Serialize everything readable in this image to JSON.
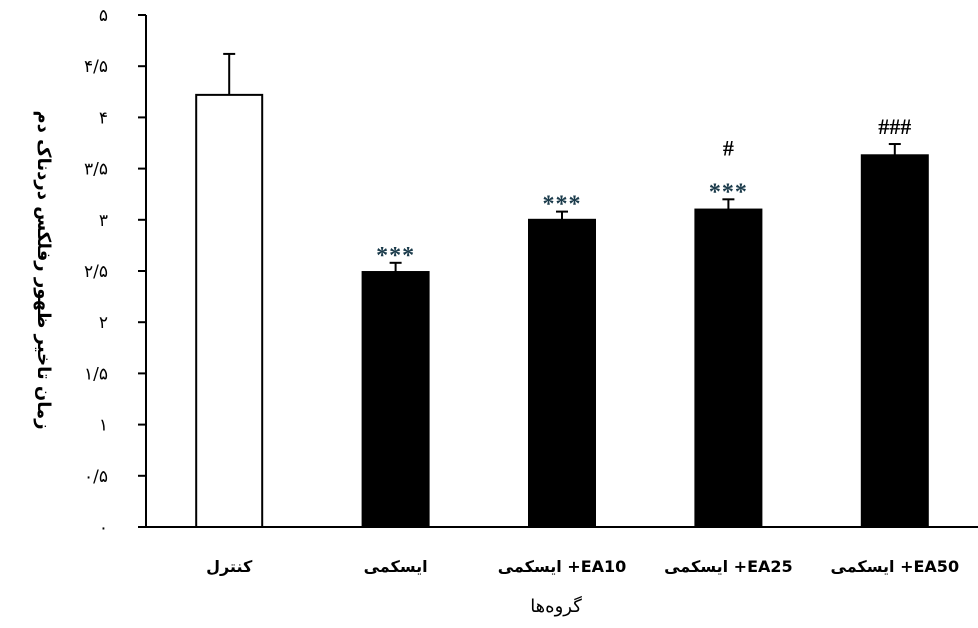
{
  "chart_data": {
    "type": "bar",
    "title": "",
    "xlabel": "گروه‌ها",
    "ylabel": "زمان تاخیر ظهور رفلکس دردناک دم",
    "ylim": [
      0,
      5
    ],
    "yticks": [
      {
        "value": 0,
        "label": "۰"
      },
      {
        "value": 0.5,
        "label": "۰/۵"
      },
      {
        "value": 1,
        "label": "۱"
      },
      {
        "value": 1.5,
        "label": "۱/۵"
      },
      {
        "value": 2,
        "label": "۲"
      },
      {
        "value": 2.5,
        "label": "۲/۵"
      },
      {
        "value": 3,
        "label": "۳"
      },
      {
        "value": 3.5,
        "label": "۳/۵"
      },
      {
        "value": 4,
        "label": "۴"
      },
      {
        "value": 4.5,
        "label": "۴/۵"
      },
      {
        "value": 5,
        "label": "۵"
      }
    ],
    "categories": [
      "کنترل",
      "ایسکمی",
      "ایسکمی +EA10",
      "ایسکمی +EA25",
      "ایسکمی +EA50"
    ],
    "values": [
      4.22,
      2.49,
      3.0,
      3.1,
      3.63
    ],
    "errors": [
      0.4,
      0.09,
      0.08,
      0.1,
      0.11
    ],
    "fills": [
      "#ffffff",
      "#000000",
      "#000000",
      "#000000",
      "#000000"
    ],
    "annotations": [
      [],
      [
        "***"
      ],
      [
        "***"
      ],
      [
        "***",
        "#"
      ],
      [
        "###"
      ]
    ],
    "grid": false
  }
}
